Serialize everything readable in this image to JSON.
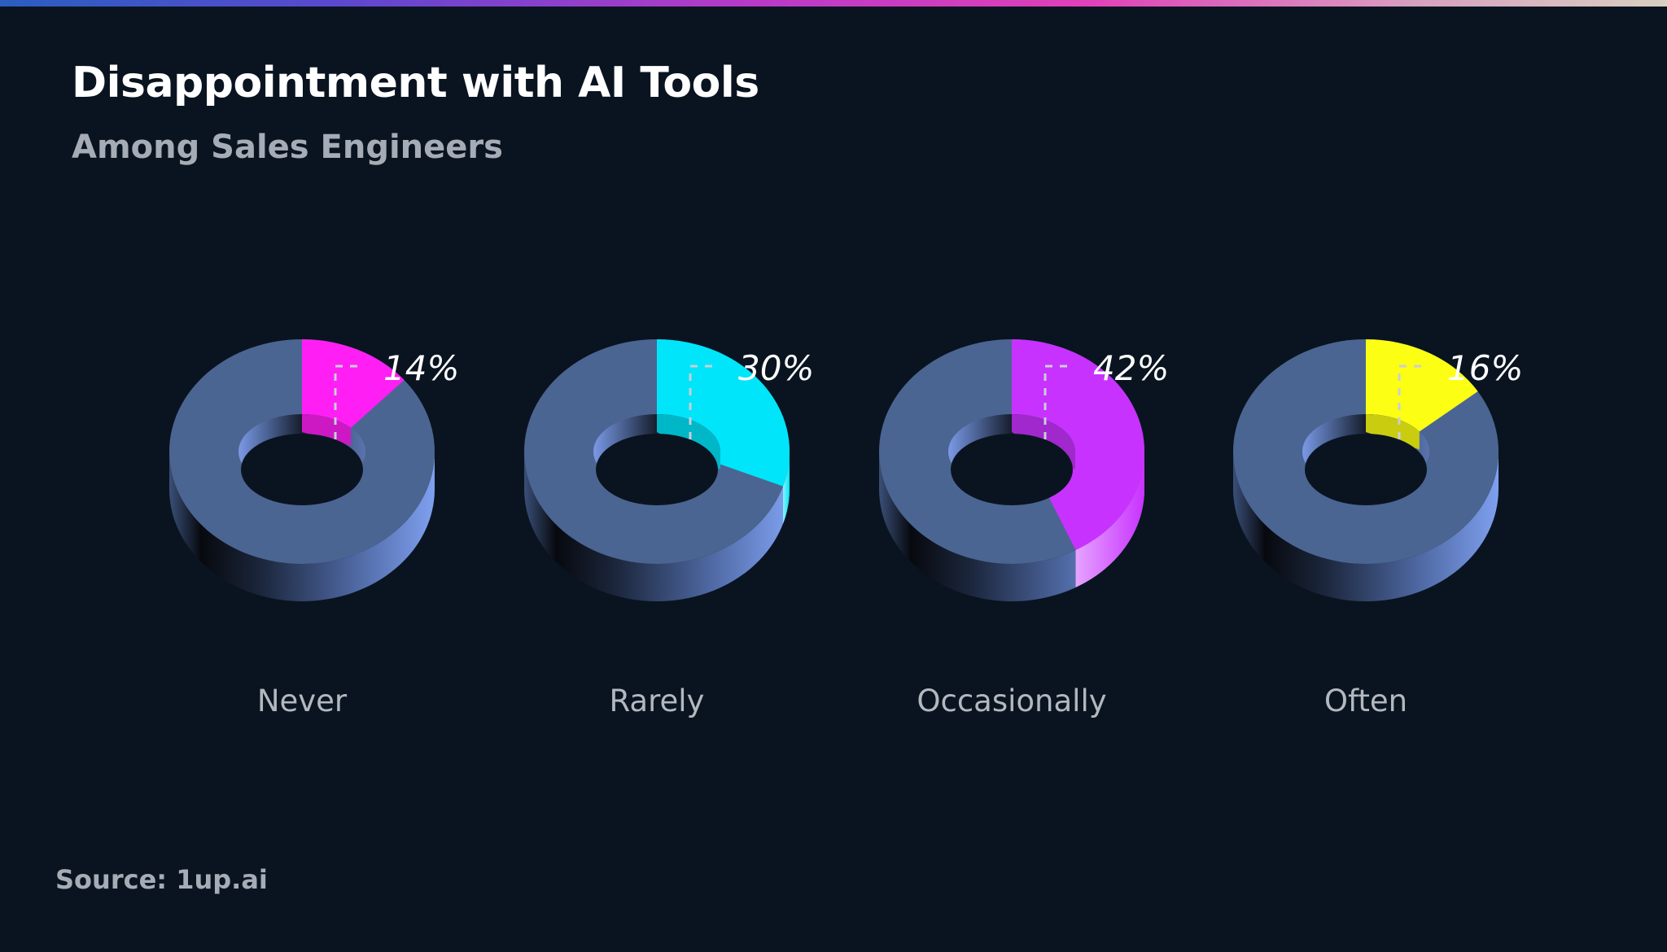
{
  "header": {
    "title": "Disappointment with AI Tools",
    "subtitle": "Among Sales Engineers"
  },
  "footer": {
    "source": "Source: 1up.ai"
  },
  "colors": {
    "background": "#0a1420",
    "ring_base": "#4b6592",
    "ring_side_light": "#7a98e8"
  },
  "chart_data": {
    "type": "pie",
    "title": "Disappointment with AI Tools",
    "subtitle": "Among Sales Engineers",
    "unit": "%",
    "categories": [
      "Never",
      "Rarely",
      "Occasionally",
      "Often"
    ],
    "values": [
      14,
      30,
      42,
      16
    ],
    "value_labels": [
      "14%",
      "30%",
      "42%",
      "16%"
    ],
    "series_colors": [
      "#ff1ff5",
      "#00e5fa",
      "#c832ff",
      "#fcff14"
    ],
    "legend": "none",
    "grid": false
  }
}
